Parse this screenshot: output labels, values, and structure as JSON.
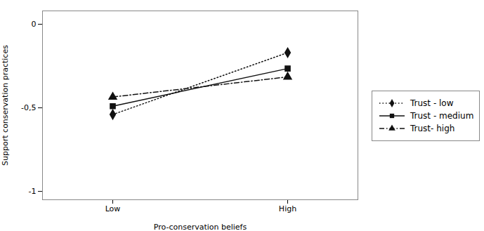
{
  "chart_data": {
    "type": "line",
    "xlabel": "Pro-conservation beliefs",
    "ylabel": "Support conservation practices",
    "categories": [
      "Low",
      "High"
    ],
    "series": [
      {
        "name": "Trust - low",
        "color": "#111111",
        "line_style": "dotted",
        "marker": "diamond",
        "values": [
          -0.54,
          -0.17
        ]
      },
      {
        "name": "Trust - medium",
        "color": "#111111",
        "line_style": "solid",
        "marker": "square",
        "values": [
          -0.49,
          -0.265
        ]
      },
      {
        "name": "Trust- high",
        "color": "#111111",
        "line_style": "dashdot",
        "marker": "triangle",
        "values": [
          -0.435,
          -0.315
        ]
      }
    ],
    "ylim": [
      -1.05,
      0.08
    ],
    "yticks": [
      -1,
      {
        "value": -0.5,
        "label": "-0,5"
      },
      0
    ],
    "grid": false,
    "legend": "right"
  }
}
